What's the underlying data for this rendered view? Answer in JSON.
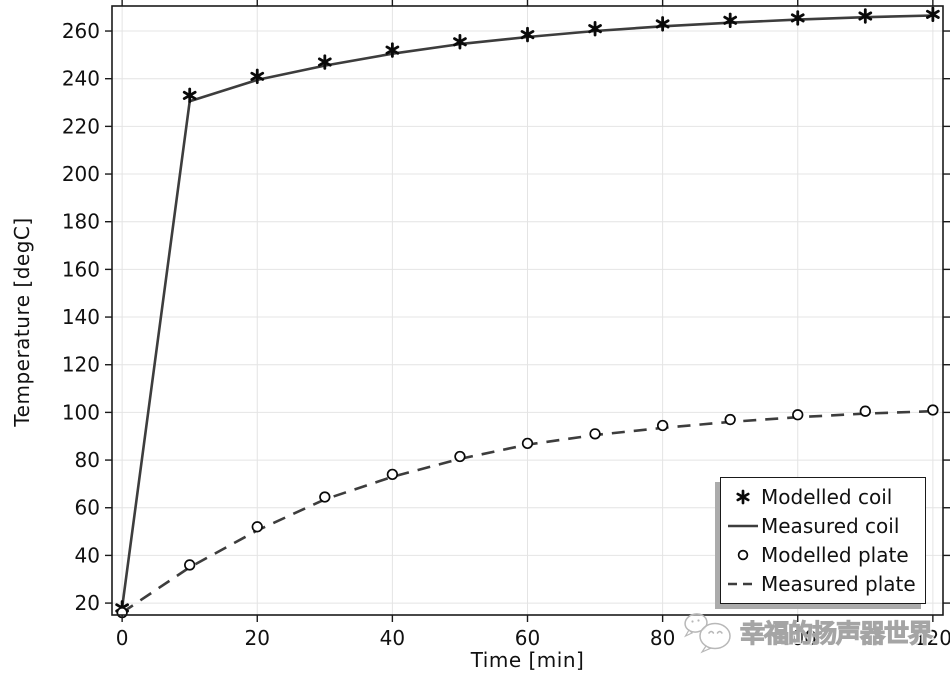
{
  "watermark": {
    "text": "幸福的扬声器世界",
    "icon": "wechat-logo"
  },
  "chart_data": {
    "type": "line",
    "title": "",
    "xlabel": "Time [min]",
    "ylabel": "Temperature [degC]",
    "x": [
      0,
      10,
      20,
      30,
      40,
      50,
      60,
      70,
      80,
      90,
      100,
      110,
      120
    ],
    "series": [
      {
        "name": "Modelled coil",
        "marker": "asterisk",
        "line": "none",
        "values": [
          18,
          233,
          241,
          247,
          252,
          255.5,
          258.5,
          261,
          263,
          264.5,
          265.5,
          266.3,
          267
        ]
      },
      {
        "name": "Measured coil",
        "marker": "none",
        "line": "solid",
        "values": [
          18,
          230.5,
          239.5,
          245.5,
          250.5,
          254.5,
          257.5,
          260,
          262,
          263.5,
          264.8,
          265.8,
          266.5
        ]
      },
      {
        "name": "Modelled plate",
        "marker": "circle",
        "line": "none",
        "values": [
          16,
          36,
          52,
          64.5,
          74,
          81.5,
          87,
          91,
          94.5,
          97,
          99,
          100.5,
          101
        ]
      },
      {
        "name": "Measured plate",
        "marker": "none",
        "line": "dashed",
        "values": [
          16,
          35,
          50.5,
          63.5,
          73,
          80.5,
          86.5,
          90.5,
          93.5,
          96,
          98,
          99.5,
          100.5
        ]
      }
    ],
    "xlim": [
      -1.5,
      121.5
    ],
    "ylim": [
      15,
      270.5
    ],
    "xticks": [
      0,
      20,
      40,
      60,
      80,
      100,
      120
    ],
    "xtick_labels": [
      "0",
      "20",
      "40",
      "60",
      "80",
      "100",
      "120"
    ],
    "yticks": [
      20,
      40,
      60,
      80,
      100,
      120,
      140,
      160,
      180,
      200,
      220,
      240,
      260
    ],
    "ytick_labels": [
      "20",
      "40",
      "60",
      "80",
      "100",
      "120",
      "140",
      "160",
      "180",
      "200",
      "220",
      "240",
      "260"
    ],
    "grid": true,
    "legend_position": "bottom-right",
    "colors": {
      "line": "#3d3d3d",
      "marker": "#0a0a0a",
      "grid": "#e4e4e4",
      "frame": "#1a1a1a",
      "background": "#ffffff",
      "legend_shadow": "#ababab",
      "watermark": "#a5a5a5"
    }
  }
}
